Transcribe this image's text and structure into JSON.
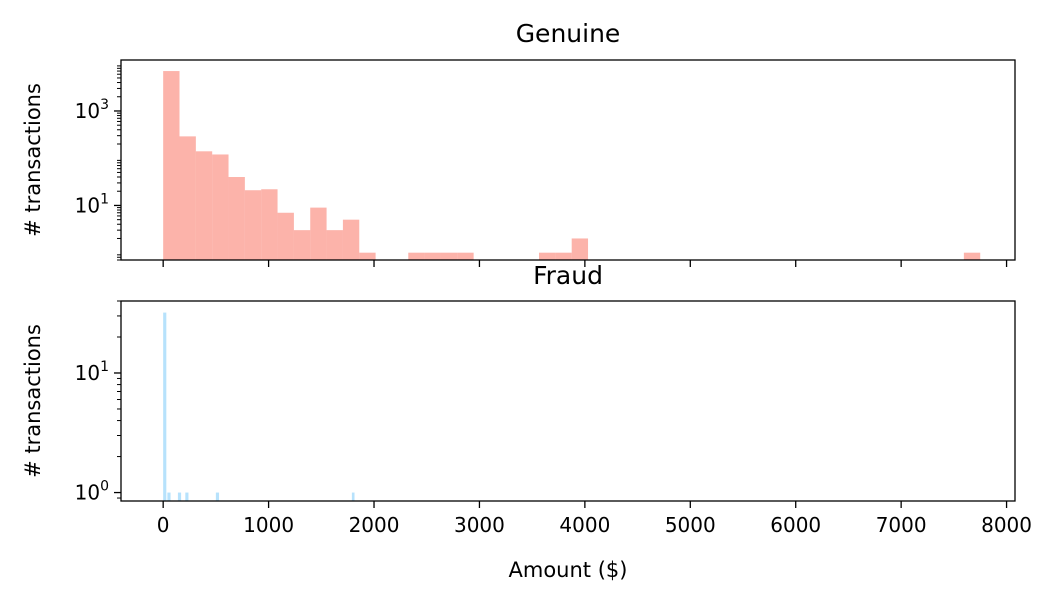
{
  "chart_data": [
    {
      "type": "bar",
      "title": "Genuine",
      "xlabel": "",
      "ylabel": "# transactions",
      "yscale": "log",
      "xlim": [
        -400,
        8080
      ],
      "ylim": [
        0.7,
        12000
      ],
      "bar_color": "#fa8072",
      "x_tick_labels_visible": false,
      "x_ticks": [
        0,
        1000,
        2000,
        3000,
        4000,
        5000,
        6000,
        7000,
        8000
      ],
      "y_ticks": [
        {
          "value": 10,
          "base": "10",
          "exp": "1"
        },
        {
          "value": 1000,
          "base": "10",
          "exp": "3"
        }
      ],
      "bins": [
        {
          "x0": 0,
          "x1": 155,
          "count": 7000
        },
        {
          "x0": 155,
          "x1": 310,
          "count": 290
        },
        {
          "x0": 310,
          "x1": 465,
          "count": 140
        },
        {
          "x0": 465,
          "x1": 620,
          "count": 120
        },
        {
          "x0": 620,
          "x1": 775,
          "count": 40
        },
        {
          "x0": 775,
          "x1": 930,
          "count": 21
        },
        {
          "x0": 930,
          "x1": 1085,
          "count": 22
        },
        {
          "x0": 1085,
          "x1": 1240,
          "count": 7
        },
        {
          "x0": 1240,
          "x1": 1395,
          "count": 3
        },
        {
          "x0": 1395,
          "x1": 1550,
          "count": 9
        },
        {
          "x0": 1550,
          "x1": 1705,
          "count": 3
        },
        {
          "x0": 1705,
          "x1": 1860,
          "count": 5
        },
        {
          "x0": 1860,
          "x1": 2015,
          "count": 1
        },
        {
          "x0": 2325,
          "x1": 2480,
          "count": 1
        },
        {
          "x0": 2480,
          "x1": 2635,
          "count": 1
        },
        {
          "x0": 2635,
          "x1": 2790,
          "count": 1
        },
        {
          "x0": 2790,
          "x1": 2945,
          "count": 1
        },
        {
          "x0": 3565,
          "x1": 3720,
          "count": 1
        },
        {
          "x0": 3720,
          "x1": 3875,
          "count": 1
        },
        {
          "x0": 3875,
          "x1": 4030,
          "count": 2
        },
        {
          "x0": 7595,
          "x1": 7750,
          "count": 1
        }
      ]
    },
    {
      "type": "bar",
      "title": "Fraud",
      "xlabel": "Amount ($)",
      "ylabel": "# transactions",
      "yscale": "log",
      "xlim": [
        -400,
        8080
      ],
      "ylim": [
        0.85,
        40
      ],
      "bar_color": "#87cefa",
      "x_tick_labels_visible": true,
      "x_ticks": [
        0,
        1000,
        2000,
        3000,
        4000,
        5000,
        6000,
        7000,
        8000
      ],
      "x_tick_labels": [
        "0",
        "1000",
        "2000",
        "3000",
        "4000",
        "5000",
        "6000",
        "7000",
        "8000"
      ],
      "y_ticks": [
        {
          "value": 1,
          "base": "10",
          "exp": "0"
        },
        {
          "value": 10,
          "base": "10",
          "exp": "1"
        }
      ],
      "bins": [
        {
          "x0": 0,
          "x1": 30,
          "count": 32
        },
        {
          "x0": 40,
          "x1": 70,
          "count": 1
        },
        {
          "x0": 140,
          "x1": 170,
          "count": 1
        },
        {
          "x0": 210,
          "x1": 240,
          "count": 1
        },
        {
          "x0": 500,
          "x1": 530,
          "count": 1
        },
        {
          "x0": 1790,
          "x1": 1815,
          "count": 1
        }
      ]
    }
  ]
}
